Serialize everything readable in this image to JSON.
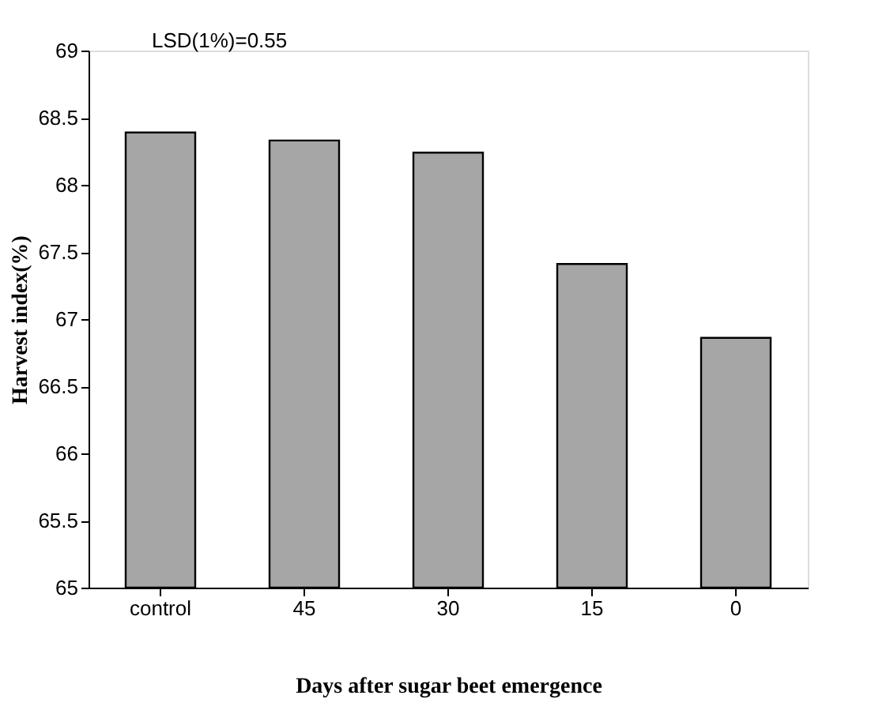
{
  "chart_data": {
    "type": "bar",
    "xlabel": "Days after sugar beet emergence",
    "ylabel": "Harvest index(%)",
    "categories": [
      "control",
      "45",
      "30",
      "15",
      "0"
    ],
    "values": [
      68.39,
      68.33,
      68.24,
      67.41,
      66.86
    ],
    "color": "#a6a6a6",
    "ylim": [
      65,
      69
    ],
    "yticks": [
      65,
      65.5,
      66,
      66.5,
      67,
      67.5,
      68,
      68.5,
      69
    ],
    "grid": false,
    "annotations": [
      "LSD(1%)=0.55"
    ]
  }
}
